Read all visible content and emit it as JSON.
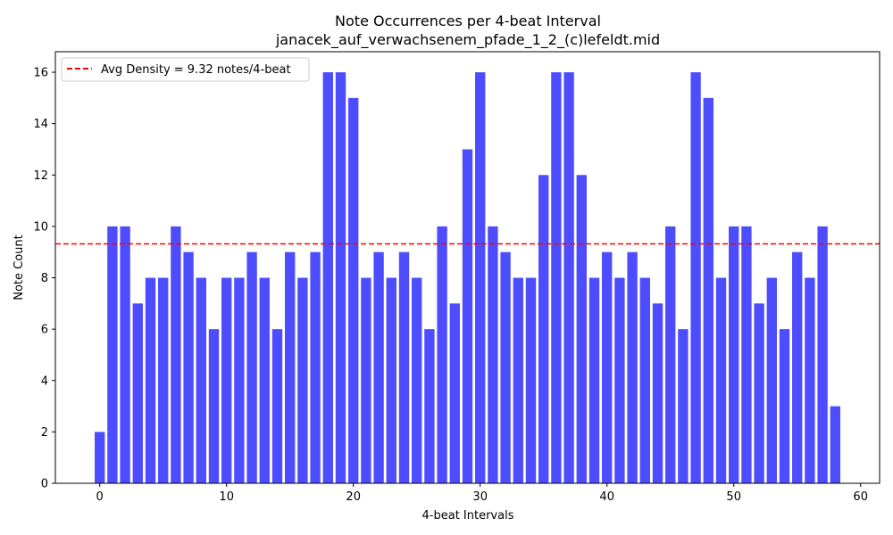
{
  "chart_data": {
    "type": "bar",
    "title": "Note Occurrences per 4-beat Interval",
    "subtitle": "janacek_auf_verwachsenem_pfade_1_2_(c)lefeldt.mid",
    "xlabel": "4-beat Intervals",
    "ylabel": "Note Count",
    "xlim": [
      -3.5,
      61.5
    ],
    "ylim": [
      0,
      16.8
    ],
    "xticks": [
      0,
      10,
      20,
      30,
      40,
      50,
      60
    ],
    "yticks": [
      0,
      2,
      4,
      6,
      8,
      10,
      12,
      14,
      16
    ],
    "bar_color": "#4d4dff",
    "x": [
      0,
      1,
      2,
      3,
      4,
      5,
      6,
      7,
      8,
      9,
      10,
      11,
      12,
      13,
      14,
      15,
      16,
      17,
      18,
      19,
      20,
      21,
      22,
      23,
      24,
      25,
      26,
      27,
      28,
      29,
      30,
      31,
      32,
      33,
      34,
      35,
      36,
      37,
      38,
      39,
      40,
      41,
      42,
      43,
      44,
      45,
      46,
      47,
      48,
      49,
      50,
      51,
      52,
      53,
      54,
      55,
      56,
      57,
      58
    ],
    "values": [
      2,
      10,
      10,
      7,
      8,
      8,
      10,
      9,
      8,
      6,
      8,
      8,
      9,
      8,
      6,
      9,
      8,
      9,
      16,
      16,
      15,
      8,
      9,
      8,
      9,
      8,
      6,
      10,
      7,
      13,
      16,
      10,
      9,
      8,
      8,
      12,
      16,
      16,
      12,
      8,
      9,
      8,
      9,
      8,
      7,
      10,
      6,
      16,
      15,
      8,
      10,
      10,
      7,
      8,
      6,
      9,
      8,
      10,
      3
    ],
    "reference_line": {
      "value": 9.32,
      "label": "Avg Density = 9.32 notes/4-beat",
      "color": "#ff0000",
      "style": "dashed"
    },
    "legend_position": "upper-left",
    "grid": false
  }
}
